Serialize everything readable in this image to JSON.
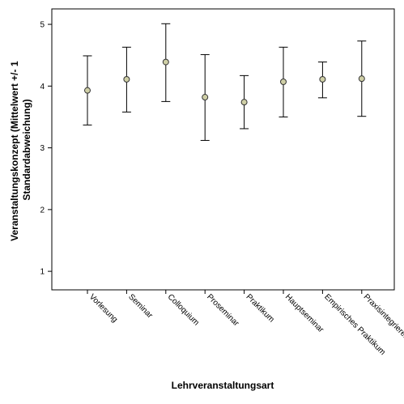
{
  "chart_data": {
    "type": "errorbar",
    "title": "",
    "xlabel": "Lehrveranstaltungsart",
    "ylabel_line1": "Veranstaltungskonzept (Mittelwert +/- 1",
    "ylabel_line2": "Standardabweichung)",
    "ylim": [
      0.7,
      5.25
    ],
    "yticks": [
      1,
      2,
      3,
      4,
      5
    ],
    "grid": false,
    "categories": [
      "Vorlesung",
      "Seminar",
      "Colloquium",
      "Proseminar",
      "Praktikum",
      "Hauptseminar",
      "Empirisches Praktikum",
      "Praxisintegrieren..."
    ],
    "means": [
      3.93,
      4.11,
      4.39,
      3.82,
      3.74,
      4.07,
      4.11,
      4.12
    ],
    "lower": [
      3.37,
      3.58,
      3.75,
      3.12,
      3.31,
      3.5,
      3.81,
      3.51
    ],
    "upper": [
      4.49,
      4.63,
      5.01,
      4.51,
      4.17,
      4.63,
      4.39,
      4.73
    ],
    "colors": {
      "marker_fill": "#cfcfa6",
      "marker_stroke": "#333333",
      "line": "#000000"
    }
  }
}
